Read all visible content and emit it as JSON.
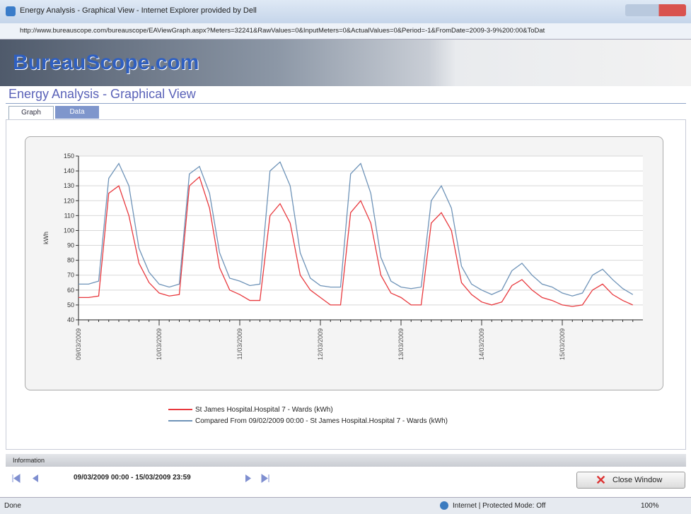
{
  "window": {
    "title": "Energy Analysis - Graphical View - Internet Explorer provided by Dell",
    "url": "http://www.bureauscope.com/bureauscope/EAViewGraph.aspx?Meters=32241&RawValues=0&InputMeters=0&ActualValues=0&Period=-1&FromDate=2009-3-9%200:00&ToDat"
  },
  "header": {
    "logo": "BureauScope.com",
    "title": "Energy Analysis - Graphical View"
  },
  "tabs": [
    "Graph",
    "Data"
  ],
  "chart_data": {
    "type": "line",
    "y_label": "kWh",
    "categories": [
      "09/03/2009",
      null,
      null,
      null,
      null,
      null,
      null,
      null,
      "10/03/2009",
      null,
      null,
      null,
      null,
      null,
      null,
      null,
      "11/03/2009",
      null,
      null,
      null,
      null,
      null,
      null,
      null,
      "12/03/2009",
      null,
      null,
      null,
      null,
      null,
      null,
      null,
      "13/03/2009",
      null,
      null,
      null,
      null,
      null,
      null,
      null,
      "14/03/2009",
      null,
      null,
      null,
      null,
      null,
      null,
      null,
      "15/03/2009",
      null,
      null,
      null,
      null,
      null,
      null,
      null
    ],
    "series": [
      {
        "name": "St James Hospital.Hospital 7 - Wards (kWh)",
        "color": "#e8383d",
        "values": [
          55,
          55,
          56,
          125,
          130,
          110,
          78,
          65,
          58,
          56,
          57,
          130,
          136,
          115,
          75,
          60,
          57,
          53,
          53,
          110,
          118,
          105,
          70,
          60,
          55,
          50,
          50,
          112,
          120,
          105,
          70,
          58,
          55,
          50,
          50,
          105,
          112,
          100,
          65,
          57,
          52,
          50,
          52,
          63,
          67,
          60,
          55,
          53,
          50,
          49,
          50,
          60,
          64,
          57,
          53,
          50
        ]
      },
      {
        "name": "Compared From 09/02/2009 00:00 - St James Hospital.Hospital 7 - Wards (kWh)",
        "color": "#6e93b8",
        "values": [
          64,
          64,
          66,
          135,
          145,
          130,
          88,
          72,
          64,
          62,
          64,
          138,
          143,
          125,
          85,
          68,
          66,
          63,
          64,
          140,
          146,
          130,
          85,
          68,
          63,
          62,
          62,
          138,
          145,
          125,
          82,
          66,
          62,
          61,
          62,
          120,
          130,
          115,
          76,
          64,
          60,
          57,
          60,
          73,
          78,
          70,
          64,
          62,
          58,
          56,
          58,
          70,
          74,
          67,
          61,
          57
        ]
      }
    ],
    "ylim": [
      40,
      150
    ],
    "yticks": [
      40,
      50,
      60,
      70,
      80,
      90,
      100,
      110,
      120,
      130,
      140,
      150
    ],
    "grid": true
  },
  "info": {
    "title": "Information",
    "range": "09/03/2009 00:00 - 15/03/2009 23:59",
    "close": "Close Window"
  },
  "status": {
    "left": "Done",
    "zone": "Internet | Protected Mode: Off",
    "zoom": "100%"
  }
}
